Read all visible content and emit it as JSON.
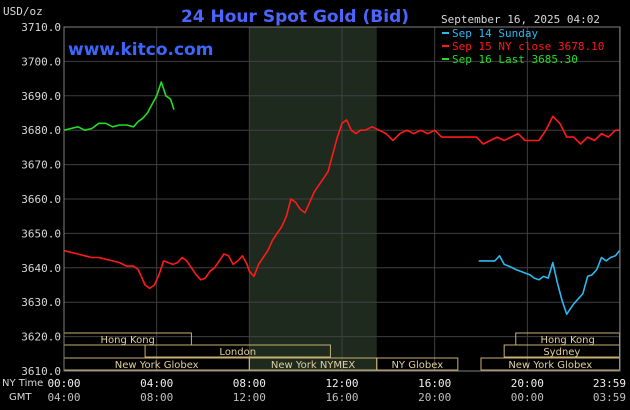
{
  "chart_data": {
    "type": "line",
    "title": "24 Hour Spot Gold (Bid)",
    "watermark": "www.kitco.com",
    "y_unit_label": "USD/oz",
    "timestamp": "September 16, 2025 04:02",
    "ylim": [
      3610,
      3710
    ],
    "y_ticks": [
      "3710.0",
      "3700.0",
      "3690.0",
      "3680.0",
      "3670.0",
      "3660.0",
      "3650.0",
      "3640.0",
      "3630.0",
      "3620.0",
      "3610.0"
    ],
    "x_row1_label": "NY Time",
    "x_row2_label": "GMT",
    "x_ticks_ny": [
      "00:00",
      "04:00",
      "08:00",
      "12:00",
      "16:00",
      "20:00",
      "23:59"
    ],
    "x_ticks_gmt": [
      "04:00",
      "08:00",
      "12:00",
      "16:00",
      "20:00",
      "00:00",
      "03:59"
    ],
    "x_tick_hours": [
      0,
      4,
      8,
      12,
      16,
      20,
      23.983
    ],
    "xlim_hours": [
      0,
      24
    ],
    "shaded_hours": [
      8.0,
      13.5
    ],
    "grid": true,
    "legend_position": "top-right",
    "series": [
      {
        "name": "Sep 14 Sunday",
        "color": "#2fb7f0",
        "x_hours": [
          17.9,
          18.6,
          18.8,
          19.0,
          19.2,
          19.5,
          19.7,
          19.9,
          20.1,
          20.3,
          20.5,
          20.7,
          20.9,
          21.1,
          21.3,
          21.5,
          21.7,
          21.9,
          22.0,
          22.2,
          22.4,
          22.6,
          22.8,
          23.0,
          23.2,
          23.4,
          23.6,
          23.8,
          23.98
        ],
        "y": [
          3642.0,
          3642.0,
          3643.5,
          3641.0,
          3640.5,
          3639.5,
          3639.0,
          3638.5,
          3638.0,
          3637.0,
          3636.5,
          3637.5,
          3637.0,
          3641.5,
          3635.5,
          3630.5,
          3626.5,
          3628.5,
          3629.5,
          3631.0,
          3632.5,
          3637.5,
          3638.0,
          3639.5,
          3643.0,
          3642.0,
          3643.0,
          3643.5,
          3645.0
        ]
      },
      {
        "name": "Sep 15 NY close 3678.10",
        "color": "#ff1a1a",
        "x_hours": [
          0.0,
          0.3,
          0.6,
          0.9,
          1.2,
          1.5,
          1.8,
          2.1,
          2.4,
          2.7,
          3.0,
          3.2,
          3.4,
          3.5,
          3.7,
          3.9,
          4.1,
          4.3,
          4.5,
          4.7,
          4.9,
          5.1,
          5.3,
          5.5,
          5.7,
          5.9,
          6.1,
          6.3,
          6.5,
          6.7,
          6.9,
          7.1,
          7.3,
          7.5,
          7.7,
          7.9,
          8.0,
          8.2,
          8.4,
          8.6,
          8.8,
          9.0,
          9.2,
          9.4,
          9.6,
          9.8,
          10.0,
          10.2,
          10.4,
          10.6,
          10.8,
          11.0,
          11.2,
          11.4,
          11.6,
          11.8,
          12.0,
          12.2,
          12.4,
          12.6,
          12.8,
          13.0,
          13.3,
          13.6,
          13.9,
          14.2,
          14.5,
          14.8,
          15.1,
          15.4,
          15.7,
          16.0,
          16.3,
          16.6,
          16.9,
          17.2,
          17.5,
          17.8,
          18.1,
          18.4,
          18.7,
          19.0,
          19.3,
          19.6,
          19.9,
          20.2,
          20.5,
          20.8,
          21.1,
          21.4,
          21.7,
          22.0,
          22.3,
          22.6,
          22.9,
          23.2,
          23.5,
          23.8,
          23.98
        ],
        "y": [
          3645,
          3644.5,
          3644,
          3643.5,
          3643,
          3643,
          3642.5,
          3642,
          3641.5,
          3640.5,
          3640.5,
          3639.5,
          3636.5,
          3635,
          3634,
          3635,
          3638,
          3642,
          3641.5,
          3641,
          3641.5,
          3643,
          3642,
          3640,
          3638,
          3636.5,
          3637,
          3639,
          3640,
          3642,
          3644,
          3643.5,
          3641,
          3642,
          3643.5,
          3641,
          3639,
          3637.5,
          3641,
          3643,
          3645,
          3648,
          3650,
          3652,
          3655,
          3660,
          3659,
          3657,
          3656,
          3659,
          3662,
          3664,
          3666,
          3668,
          3673,
          3678,
          3682,
          3683,
          3680,
          3679,
          3680,
          3680,
          3681,
          3680,
          3679,
          3677,
          3679,
          3680,
          3679,
          3680,
          3679,
          3680,
          3678,
          3678,
          3678,
          3678,
          3678,
          3678,
          3676,
          3677,
          3678,
          3677,
          3678,
          3679,
          3677,
          3677,
          3677,
          3680,
          3684,
          3682,
          3678,
          3678,
          3676,
          3678,
          3677,
          3679,
          3678,
          3680,
          3680
        ]
      },
      {
        "name": "Sep 16 Last 3685.30",
        "color": "#22dd22",
        "x_hours": [
          0.0,
          0.3,
          0.6,
          0.9,
          1.2,
          1.5,
          1.8,
          2.1,
          2.4,
          2.7,
          3.0,
          3.2,
          3.4,
          3.6,
          3.8,
          4.0,
          4.2,
          4.4,
          4.6,
          4.75
        ],
        "y": [
          3680,
          3680.5,
          3681,
          3680,
          3680.5,
          3682,
          3682,
          3681,
          3681.5,
          3681.5,
          3681,
          3682.5,
          3683.5,
          3685,
          3687.5,
          3690,
          3694,
          3690,
          3689,
          3686
        ]
      }
    ],
    "sessions": [
      {
        "label": "Hong Kong",
        "row": 0,
        "start": 0.0,
        "end": 5.5
      },
      {
        "label": "London",
        "row": 1,
        "start": 3.5,
        "end": 11.5
      },
      {
        "label": "New York Globex",
        "row": 2,
        "start": 0.0,
        "end": 8.0
      },
      {
        "label": "New York NYMEX",
        "row": 2,
        "start": 8.0,
        "end": 13.5
      },
      {
        "label": "NY Globex",
        "row": 2,
        "start": 13.5,
        "end": 17.0
      },
      {
        "label": "Hong Kong",
        "row": 0,
        "start": 19.5,
        "end": 23.98
      },
      {
        "label": "Sydney",
        "row": 1,
        "start": 19.0,
        "end": 23.98
      },
      {
        "label": "New York Globex",
        "row": 2,
        "start": 18.0,
        "end": 23.98
      }
    ]
  }
}
